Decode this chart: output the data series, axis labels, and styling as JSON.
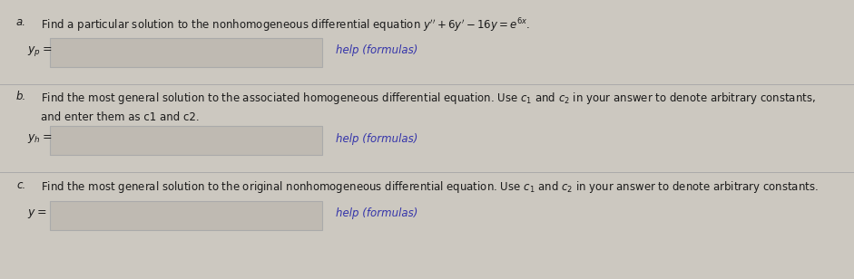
{
  "bg_color": "#ccc8c0",
  "text_color": "#1a1a1a",
  "link_color": "#3333aa",
  "box_facecolor": "#bfbab2",
  "box_edgecolor": "#aaaaaa",
  "part_a_label": "a.",
  "part_a_text": "Find a particular solution to the nonhomogeneous differential equation $y'' + 6y' - 16y = e^{6x}$.",
  "part_a_var": "$y_p =$",
  "part_a_link": "help (formulas)",
  "part_b_label": "b.",
  "part_b_line1": "Find the most general solution to the associated homogeneous differential equation. Use $c_1$ and $c_2$ in your answer to denote arbitrary constants,",
  "part_b_line2": "and enter them as c1 and c2.",
  "part_b_var": "$y_h =$",
  "part_b_link": "help (formulas)",
  "part_c_label": "c.",
  "part_c_text": "Find the most general solution to the original nonhomogeneous differential equation. Use $c_1$ and $c_2$ in your answer to denote arbitrary constants.",
  "part_c_var": "$y =$",
  "part_c_link": "help (formulas)",
  "divider_color": "#aaaaaa",
  "font_size": 8.5,
  "font_size_var": 9.0,
  "font_size_link": 8.5,
  "figwidth": 9.41,
  "figheight": 3.08,
  "dpi": 100
}
